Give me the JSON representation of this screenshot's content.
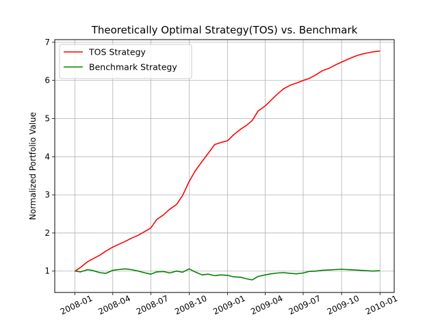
{
  "chart_data": {
    "type": "line",
    "title": "Theoretically Optimal Strategy(TOS) vs. Benchmark",
    "xlabel": "",
    "ylabel": "Normalized Portfolio Value",
    "x_axis_kind": "date",
    "xlim": [
      "2007-11-14",
      "2010-02-04"
    ],
    "ylim": [
      0.44,
      7.07
    ],
    "x_ticks": [
      {
        "date": "2008-01-01",
        "label": "2008-01"
      },
      {
        "date": "2008-04-01",
        "label": "2008-04"
      },
      {
        "date": "2008-07-01",
        "label": "2008-07"
      },
      {
        "date": "2008-10-01",
        "label": "2008-10"
      },
      {
        "date": "2009-01-01",
        "label": "2009-01"
      },
      {
        "date": "2009-04-01",
        "label": "2009-04"
      },
      {
        "date": "2009-07-01",
        "label": "2009-07"
      },
      {
        "date": "2009-10-01",
        "label": "2009-10"
      },
      {
        "date": "2010-01-01",
        "label": "2010-01"
      }
    ],
    "y_ticks": [
      1,
      2,
      3,
      4,
      5,
      6,
      7
    ],
    "grid": true,
    "legend_position": "top-left",
    "series": [
      {
        "name": "TOS Strategy",
        "color": "#ff0000",
        "points": [
          [
            "2008-01-02",
            1.0
          ],
          [
            "2008-01-15",
            1.1
          ],
          [
            "2008-02-01",
            1.25
          ],
          [
            "2008-02-15",
            1.33
          ],
          [
            "2008-03-01",
            1.42
          ],
          [
            "2008-03-15",
            1.52
          ],
          [
            "2008-04-01",
            1.63
          ],
          [
            "2008-04-15",
            1.7
          ],
          [
            "2008-05-01",
            1.78
          ],
          [
            "2008-05-15",
            1.86
          ],
          [
            "2008-06-01",
            1.94
          ],
          [
            "2008-06-15",
            2.03
          ],
          [
            "2008-07-01",
            2.13
          ],
          [
            "2008-07-15",
            2.35
          ],
          [
            "2008-08-01",
            2.48
          ],
          [
            "2008-08-15",
            2.62
          ],
          [
            "2008-09-01",
            2.75
          ],
          [
            "2008-09-15",
            2.98
          ],
          [
            "2008-10-01",
            3.35
          ],
          [
            "2008-10-15",
            3.62
          ],
          [
            "2008-11-01",
            3.88
          ],
          [
            "2008-11-15",
            4.08
          ],
          [
            "2008-12-01",
            4.32
          ],
          [
            "2008-12-15",
            4.37
          ],
          [
            "2009-01-01",
            4.42
          ],
          [
            "2009-01-15",
            4.57
          ],
          [
            "2009-02-01",
            4.72
          ],
          [
            "2009-02-15",
            4.82
          ],
          [
            "2009-03-01",
            4.95
          ],
          [
            "2009-03-15",
            5.2
          ],
          [
            "2009-04-01",
            5.33
          ],
          [
            "2009-04-15",
            5.48
          ],
          [
            "2009-05-01",
            5.65
          ],
          [
            "2009-05-15",
            5.78
          ],
          [
            "2009-06-01",
            5.88
          ],
          [
            "2009-06-15",
            5.93
          ],
          [
            "2009-07-01",
            6.0
          ],
          [
            "2009-07-15",
            6.05
          ],
          [
            "2009-08-01",
            6.15
          ],
          [
            "2009-08-15",
            6.25
          ],
          [
            "2009-09-01",
            6.32
          ],
          [
            "2009-09-15",
            6.4
          ],
          [
            "2009-10-01",
            6.48
          ],
          [
            "2009-10-15",
            6.55
          ],
          [
            "2009-11-01",
            6.63
          ],
          [
            "2009-11-15",
            6.68
          ],
          [
            "2009-12-01",
            6.72
          ],
          [
            "2009-12-15",
            6.75
          ],
          [
            "2009-12-31",
            6.77
          ]
        ]
      },
      {
        "name": "Benchmark Strategy",
        "color": "#008000",
        "points": [
          [
            "2008-01-02",
            1.0
          ],
          [
            "2008-01-15",
            0.98
          ],
          [
            "2008-02-01",
            1.04
          ],
          [
            "2008-02-15",
            1.01
          ],
          [
            "2008-03-01",
            0.96
          ],
          [
            "2008-03-15",
            0.94
          ],
          [
            "2008-04-01",
            1.02
          ],
          [
            "2008-04-15",
            1.04
          ],
          [
            "2008-05-01",
            1.06
          ],
          [
            "2008-05-15",
            1.04
          ],
          [
            "2008-06-01",
            1.0
          ],
          [
            "2008-06-15",
            0.96
          ],
          [
            "2008-07-01",
            0.92
          ],
          [
            "2008-07-15",
            0.98
          ],
          [
            "2008-08-01",
            0.99
          ],
          [
            "2008-08-15",
            0.95
          ],
          [
            "2008-09-01",
            1.0
          ],
          [
            "2008-09-15",
            0.97
          ],
          [
            "2008-10-01",
            1.06
          ],
          [
            "2008-10-15",
            0.98
          ],
          [
            "2008-11-01",
            0.9
          ],
          [
            "2008-11-15",
            0.92
          ],
          [
            "2008-12-01",
            0.88
          ],
          [
            "2008-12-15",
            0.9
          ],
          [
            "2009-01-01",
            0.89
          ],
          [
            "2009-01-15",
            0.85
          ],
          [
            "2009-02-01",
            0.84
          ],
          [
            "2009-02-15",
            0.8
          ],
          [
            "2009-03-01",
            0.77
          ],
          [
            "2009-03-15",
            0.86
          ],
          [
            "2009-04-01",
            0.9
          ],
          [
            "2009-04-15",
            0.93
          ],
          [
            "2009-05-01",
            0.95
          ],
          [
            "2009-05-15",
            0.96
          ],
          [
            "2009-06-01",
            0.94
          ],
          [
            "2009-06-15",
            0.93
          ],
          [
            "2009-07-01",
            0.95
          ],
          [
            "2009-07-15",
            0.99
          ],
          [
            "2009-08-01",
            1.0
          ],
          [
            "2009-08-15",
            1.02
          ],
          [
            "2009-09-01",
            1.03
          ],
          [
            "2009-09-15",
            1.04
          ],
          [
            "2009-10-01",
            1.05
          ],
          [
            "2009-10-15",
            1.04
          ],
          [
            "2009-11-01",
            1.03
          ],
          [
            "2009-11-15",
            1.02
          ],
          [
            "2009-12-01",
            1.01
          ],
          [
            "2009-12-15",
            1.0
          ],
          [
            "2009-12-31",
            1.01
          ]
        ]
      }
    ]
  }
}
